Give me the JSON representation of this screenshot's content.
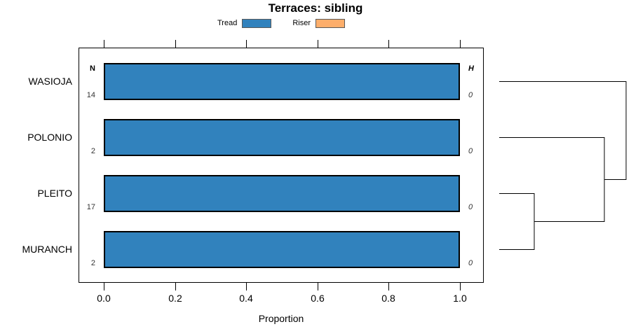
{
  "title": "Terraces: sibling",
  "legend": {
    "items": [
      {
        "label": "Tread",
        "color": "#3182BD"
      },
      {
        "label": "Riser",
        "color": "#FDAE6B"
      }
    ]
  },
  "columns": {
    "n_header": "N",
    "h_header": "H"
  },
  "rows": [
    {
      "label": "WASIOJA",
      "n": "14",
      "h": "0",
      "proportion": 1.0
    },
    {
      "label": "POLONIO",
      "n": "2",
      "h": "0",
      "proportion": 1.0
    },
    {
      "label": "PLEITO",
      "n": "17",
      "h": "0",
      "proportion": 1.0
    },
    {
      "label": "MURANCH",
      "n": "2",
      "h": "0",
      "proportion": 1.0
    }
  ],
  "axis": {
    "label": "Proportion",
    "tick_labels": [
      "0.0",
      "0.2",
      "0.4",
      "0.6",
      "0.8",
      "1.0"
    ]
  },
  "chart_data": {
    "type": "bar",
    "orientation": "horizontal",
    "title": "Terraces: sibling",
    "categories": [
      "WASIOJA",
      "POLONIO",
      "PLEITO",
      "MURANCH"
    ],
    "series": [
      {
        "name": "Tread",
        "values": [
          1.0,
          1.0,
          1.0,
          1.0
        ],
        "color": "#3182BD"
      },
      {
        "name": "Riser",
        "values": [
          0,
          0,
          0,
          0
        ],
        "color": "#FDAE6B"
      }
    ],
    "n_values": [
      14,
      2,
      17,
      2
    ],
    "h_values": [
      0,
      0,
      0,
      0
    ],
    "xlabel": "Proportion",
    "ylabel": "",
    "xlim": [
      0,
      1
    ],
    "x_ticks": [
      0.0,
      0.2,
      0.4,
      0.6,
      0.8,
      1.0
    ],
    "grid": false,
    "legend_position": "top-center",
    "dendrogram": {
      "side": "right",
      "leaf_order_top_to_bottom": [
        "WASIOJA",
        "POLONIO",
        "PLEITO",
        "MURANCH"
      ],
      "merges": [
        {
          "members": [
            "PLEITO",
            "MURANCH"
          ],
          "relative_height": 0.28
        },
        {
          "members": [
            "PLEITO+MURANCH",
            "POLONIO"
          ],
          "relative_height": 0.83
        },
        {
          "members": [
            "PLEITO+MURANCH+POLONIO",
            "WASIOJA"
          ],
          "relative_height": 1.0
        }
      ]
    }
  }
}
